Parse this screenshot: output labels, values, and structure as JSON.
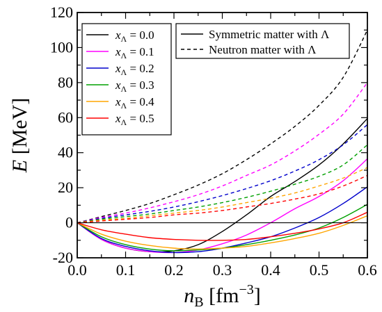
{
  "chart_data": {
    "type": "line",
    "title": "",
    "xlabel": {
      "symbol": "n",
      "sub": "B",
      "unit_pre": " [fm",
      "unit_sup": "−3",
      "unit_post": "]"
    },
    "ylabel": {
      "symbol": "E",
      "unit": " [MeV]"
    },
    "xlim": [
      0.0,
      0.6
    ],
    "ylim": [
      -20,
      120
    ],
    "xticks": [
      0.0,
      0.1,
      0.2,
      0.3,
      0.4,
      0.5,
      0.6
    ],
    "xtick_labels": [
      "0.0",
      "0.1",
      "0.2",
      "0.3",
      "0.4",
      "0.5",
      "0.6"
    ],
    "yticks": [
      -20,
      0,
      20,
      40,
      60,
      80,
      100,
      120
    ],
    "ytick_labels": [
      "-20",
      "0",
      "20",
      "40",
      "60",
      "80",
      "100",
      "120"
    ],
    "grid": false,
    "zero_line": true,
    "x": [
      0.0,
      0.05,
      0.1,
      0.15,
      0.2,
      0.25,
      0.3,
      0.35,
      0.4,
      0.45,
      0.5,
      0.55,
      0.6
    ],
    "legend_color": {
      "position": "top-left",
      "entries": [
        {
          "symbol": "x",
          "sub": "Λ",
          "text": " = 0.0",
          "color": "#000000"
        },
        {
          "symbol": "x",
          "sub": "Λ",
          "text": " = 0.1",
          "color": "#ff00ff"
        },
        {
          "symbol": "x",
          "sub": "Λ",
          "text": " = 0.2",
          "color": "#0000cc"
        },
        {
          "symbol": "x",
          "sub": "Λ",
          "text": " = 0.3",
          "color": "#00a000"
        },
        {
          "symbol": "x",
          "sub": "Λ",
          "text": " = 0.4",
          "color": "#ffa500"
        },
        {
          "symbol": "x",
          "sub": "Λ",
          "text": " = 0.5",
          "color": "#ff0000"
        }
      ]
    },
    "legend_style": {
      "position": "top-right",
      "entries": [
        {
          "text": "Symmetric matter with Λ",
          "dash": "solid"
        },
        {
          "text": "Neutron matter with Λ",
          "dash": "dashed"
        }
      ]
    },
    "series": [
      {
        "x_lambda": 0.0,
        "matter": "symmetric",
        "color": "#000000",
        "dash": "solid",
        "values": [
          0,
          -9.5,
          -14.5,
          -16.5,
          -16,
          -12.5,
          -5,
          4.5,
          15,
          23.5,
          33,
          45,
          59.5
        ]
      },
      {
        "x_lambda": 0.1,
        "matter": "symmetric",
        "color": "#ff00ff",
        "dash": "solid",
        "values": [
          0,
          -9.5,
          -14.5,
          -16.5,
          -17,
          -15.5,
          -12,
          -7,
          0,
          8,
          15,
          24,
          36.5
        ]
      },
      {
        "x_lambda": 0.2,
        "matter": "symmetric",
        "color": "#0000cc",
        "dash": "solid",
        "values": [
          0,
          -9,
          -13.5,
          -16,
          -17,
          -16.5,
          -14.5,
          -11.5,
          -8,
          -3,
          3,
          11,
          20.5
        ]
      },
      {
        "x_lambda": 0.3,
        "matter": "symmetric",
        "color": "#00a000",
        "dash": "solid",
        "values": [
          0,
          -8,
          -12.5,
          -15,
          -16,
          -15.5,
          -14.5,
          -12.5,
          -10,
          -7,
          -3,
          3,
          10.5
        ]
      },
      {
        "x_lambda": 0.4,
        "matter": "symmetric",
        "color": "#ffa500",
        "dash": "solid",
        "values": [
          0,
          -6.5,
          -10.5,
          -13,
          -14.5,
          -15,
          -14.5,
          -13.5,
          -11.5,
          -9,
          -6,
          -1.5,
          4
        ]
      },
      {
        "x_lambda": 0.5,
        "matter": "symmetric",
        "color": "#ff0000",
        "dash": "solid",
        "values": [
          0,
          -4,
          -6.5,
          -8.5,
          -9.5,
          -10,
          -10,
          -9.5,
          -8,
          -6,
          -3.5,
          0,
          6
        ]
      },
      {
        "x_lambda": 0.0,
        "matter": "neutron",
        "color": "#000000",
        "dash": "dashed",
        "values": [
          0,
          3.5,
          7,
          11,
          16,
          21.5,
          28,
          36,
          45,
          55,
          67,
          83,
          110
        ]
      },
      {
        "x_lambda": 0.1,
        "matter": "neutron",
        "color": "#ff00ff",
        "dash": "dashed",
        "values": [
          0,
          3,
          5.5,
          8.5,
          12,
          16,
          21,
          27,
          33,
          41,
          50.5,
          62,
          80
        ]
      },
      {
        "x_lambda": 0.2,
        "matter": "neutron",
        "color": "#0000cc",
        "dash": "dashed",
        "values": [
          0,
          2.5,
          4.5,
          6.5,
          9,
          12,
          15.5,
          19.5,
          24,
          29.5,
          36,
          44.5,
          56
        ]
      },
      {
        "x_lambda": 0.3,
        "matter": "neutron",
        "color": "#00a000",
        "dash": "dashed",
        "values": [
          0,
          2,
          3.5,
          5,
          7,
          9,
          11.5,
          14.5,
          18,
          22,
          26.5,
          33,
          44.5
        ]
      },
      {
        "x_lambda": 0.4,
        "matter": "neutron",
        "color": "#ffa500",
        "dash": "dashed",
        "values": [
          0,
          1.5,
          2.5,
          4,
          5.5,
          7,
          9,
          11.5,
          14,
          17,
          21,
          25.5,
          31.5
        ]
      },
      {
        "x_lambda": 0.5,
        "matter": "neutron",
        "color": "#ff0000",
        "dash": "dashed",
        "values": [
          0,
          1,
          2,
          3,
          4.5,
          5.5,
          7,
          9,
          11,
          13.5,
          16.5,
          21,
          27
        ]
      }
    ]
  }
}
